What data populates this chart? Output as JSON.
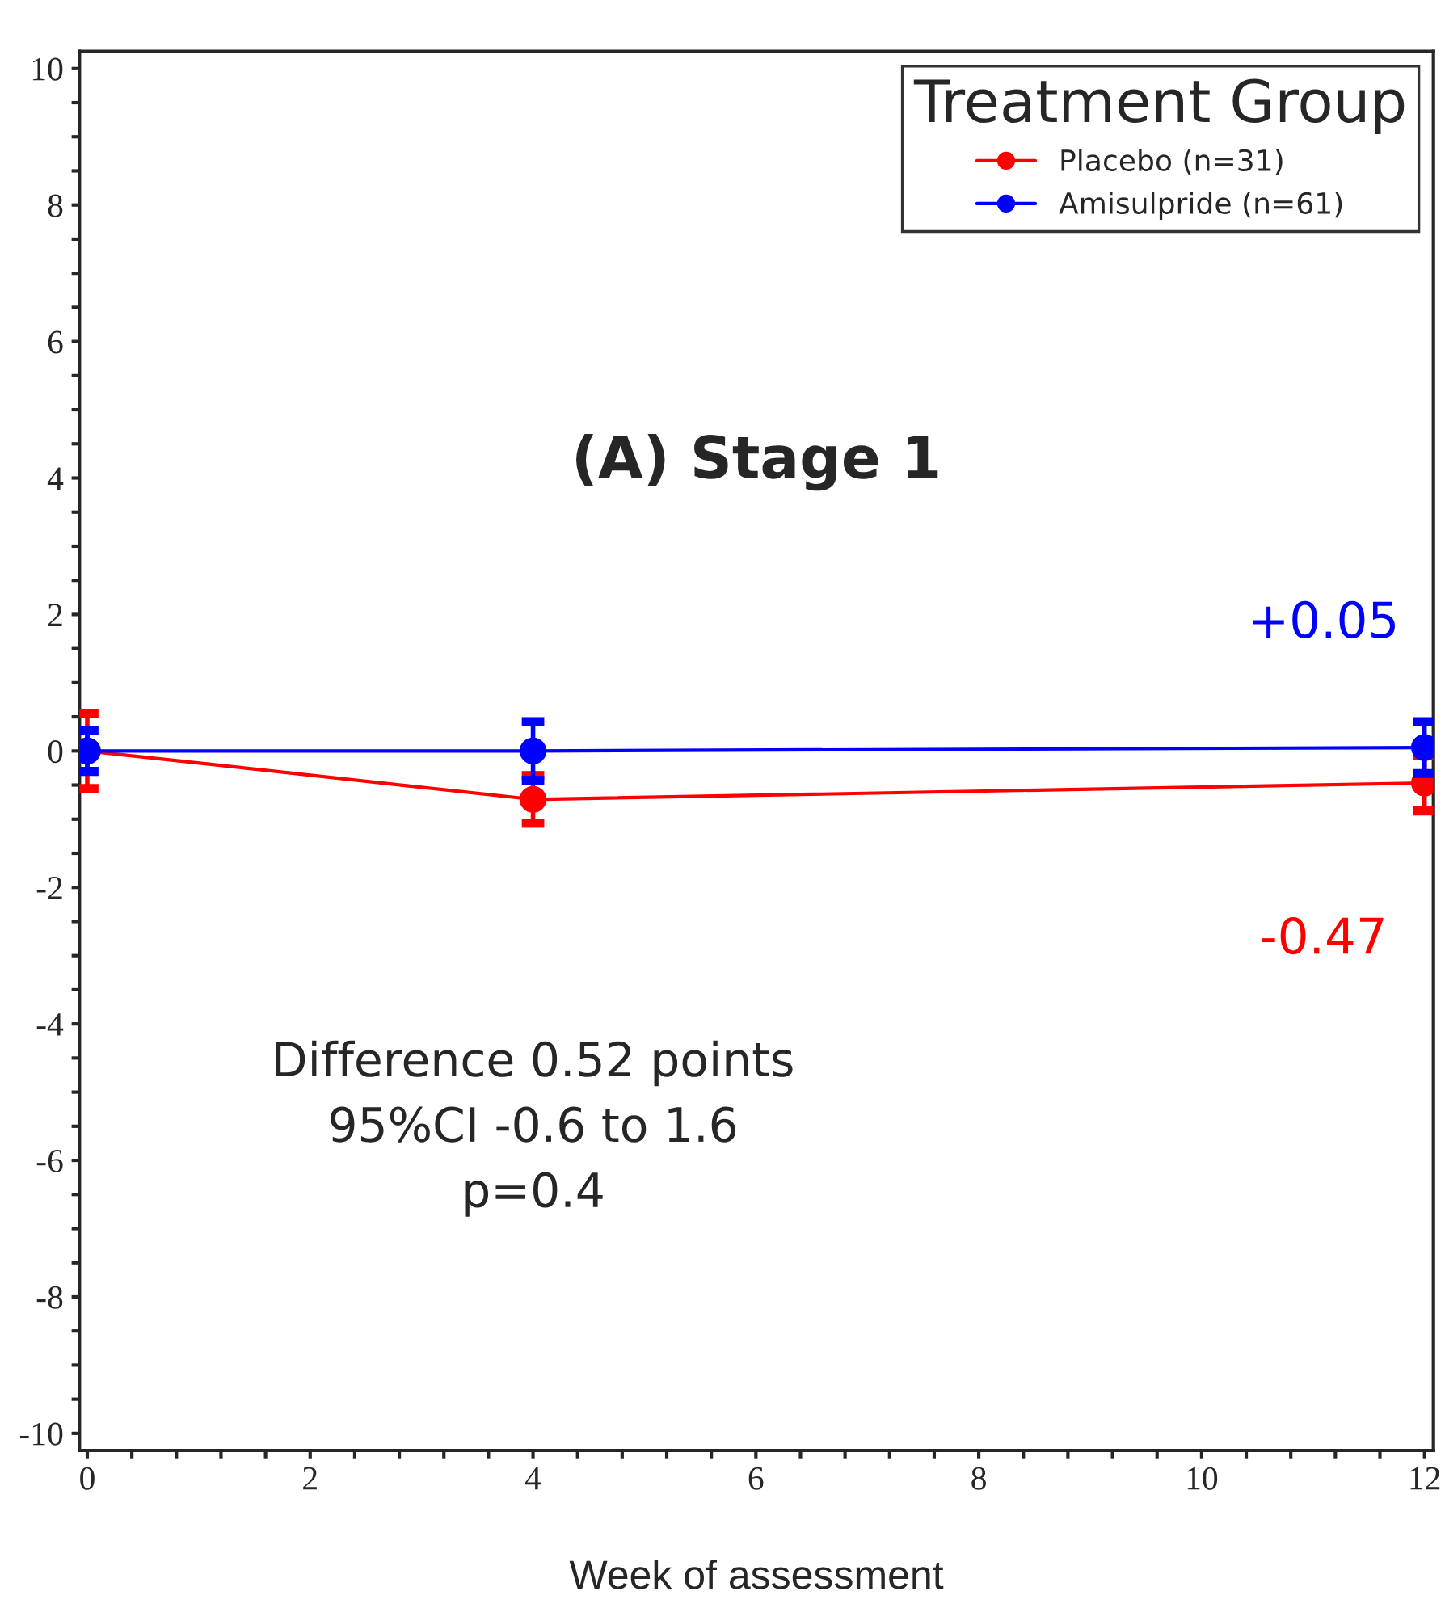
{
  "chart_data": {
    "type": "line",
    "title": "(A) Stage 1",
    "xlabel": "Week of assessment",
    "x": [
      0,
      4,
      12
    ],
    "series": [
      {
        "name": "Placebo (n=31)",
        "color": "#ff0000",
        "values": [
          0,
          -0.71,
          -0.47
        ],
        "errors": [
          0.55,
          0.35,
          0.41
        ]
      },
      {
        "name": "Amisulpride (n=61)",
        "color": "#0000ff",
        "values": [
          0,
          0,
          0.05
        ],
        "errors": [
          0.3,
          0.43,
          0.38
        ]
      }
    ],
    "annotations": [
      {
        "text": "+0.05",
        "x": 12,
        "y": 0.05
      },
      {
        "text": "-0.47",
        "x": 12,
        "y": -0.47
      },
      "Difference 0.52 points\n95%CI -0.6 to 1.6\np=0.4"
    ],
    "legend_title": "Treatment Group",
    "legend": "top right",
    "marker": "circle",
    "line_style": "solid",
    "grid": false,
    "xlim": [
      -0.07,
      12.08
    ],
    "ylim": [
      -10.25,
      10.25
    ],
    "xticks": [
      0,
      {
        "value": 0.4,
        "label": null
      },
      {
        "value": 0.8,
        "label": null
      },
      {
        "value": 1.2,
        "label": null
      },
      {
        "value": 1.6,
        "label": null
      },
      2,
      {
        "value": 2.4,
        "label": null
      },
      {
        "value": 2.8,
        "label": null
      },
      {
        "value": 3.2,
        "label": null
      },
      {
        "value": 3.6,
        "label": null
      },
      4,
      {
        "value": 4.4,
        "label": null
      },
      {
        "value": 4.8,
        "label": null
      },
      {
        "value": 5.2,
        "label": null
      },
      {
        "value": 5.6,
        "label": null
      },
      6,
      {
        "value": 6.4,
        "label": null
      },
      {
        "value": 6.8,
        "label": null
      },
      {
        "value": 7.2,
        "label": null
      },
      {
        "value": 7.6,
        "label": null
      },
      8,
      {
        "value": 8.4,
        "label": null
      },
      {
        "value": 8.8,
        "label": null
      },
      {
        "value": 9.2,
        "label": null
      },
      {
        "value": 9.6,
        "label": null
      },
      10,
      {
        "value": 10.4,
        "label": null
      },
      {
        "value": 10.8,
        "label": null
      },
      {
        "value": 11.2,
        "label": null
      },
      {
        "value": 11.6,
        "label": null
      },
      12
    ],
    "yticks": [
      -10,
      {
        "value": -9.5,
        "label": null
      },
      {
        "value": -9,
        "label": null
      },
      {
        "value": -8.5,
        "label": null
      },
      -8,
      {
        "value": -7.5,
        "label": null
      },
      {
        "value": -7,
        "label": null
      },
      {
        "value": -6.5,
        "label": null
      },
      -6,
      {
        "value": -5.5,
        "label": null
      },
      {
        "value": -5,
        "label": null
      },
      {
        "value": -4.5,
        "label": null
      },
      -4,
      {
        "value": -3.5,
        "label": null
      },
      {
        "value": -3,
        "label": null
      },
      {
        "value": -2.5,
        "label": null
      },
      -2,
      {
        "value": -1.5,
        "label": null
      },
      {
        "value": -1,
        "label": null
      },
      {
        "value": -0.5,
        "label": null
      },
      0,
      {
        "value": 0.5,
        "label": null
      },
      {
        "value": 1,
        "label": null
      },
      {
        "value": 1.5,
        "label": null
      },
      2,
      {
        "value": 2.5,
        "label": null
      },
      {
        "value": 3,
        "label": null
      },
      {
        "value": 3.5,
        "label": null
      },
      4,
      {
        "value": 4.5,
        "label": null
      },
      {
        "value": 5,
        "label": null
      },
      {
        "value": 5.5,
        "label": null
      },
      6,
      {
        "value": 6.5,
        "label": null
      },
      {
        "value": 7,
        "label": null
      },
      {
        "value": 7.5,
        "label": null
      },
      8,
      {
        "value": 8.5,
        "label": null
      },
      {
        "value": 9,
        "label": null
      },
      {
        "value": 9.5,
        "label": null
      },
      10
    ]
  }
}
